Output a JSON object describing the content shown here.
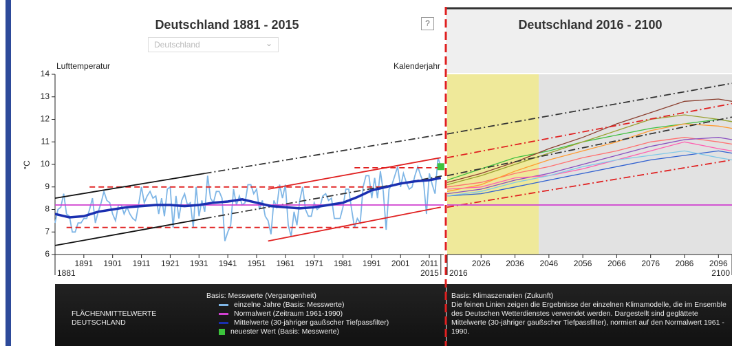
{
  "chart_data": [
    {
      "type": "line",
      "title": "Deutschland 1881 - 2015",
      "dropdown": "Deutschland",
      "help": "?",
      "y_label": "Lufttemperatur",
      "x_label": "Kalenderjahr",
      "y_unit": "°C",
      "legend_title": "Basis: Messwerte (Vergangenheit)",
      "note_heading": "FLÄCHENMITTELWERTE DEUTSCHLAND",
      "xlim": [
        1881,
        2016
      ],
      "ylim": [
        6,
        14
      ],
      "yticks": [
        6,
        7,
        8,
        9,
        10,
        11,
        12,
        13,
        14
      ],
      "xticks": [
        1891,
        1901,
        1911,
        1921,
        1931,
        1941,
        1951,
        1961,
        1971,
        1981,
        1991,
        2001,
        2011
      ],
      "range_labels": [
        1881,
        2015
      ],
      "series": [
        {
          "name": "einzelne Jahre (Basis: Messwerte)",
          "color": "#7fb6e6",
          "style": "solid",
          "x": [
            1881,
            1882,
            1883,
            1884,
            1885,
            1886,
            1887,
            1888,
            1889,
            1890,
            1891,
            1892,
            1893,
            1894,
            1895,
            1896,
            1897,
            1898,
            1899,
            1900,
            1901,
            1902,
            1903,
            1904,
            1905,
            1906,
            1907,
            1908,
            1909,
            1910,
            1911,
            1912,
            1913,
            1914,
            1915,
            1916,
            1917,
            1918,
            1919,
            1920,
            1921,
            1922,
            1923,
            1924,
            1925,
            1926,
            1927,
            1928,
            1929,
            1930,
            1931,
            1932,
            1933,
            1934,
            1935,
            1936,
            1937,
            1938,
            1939,
            1940,
            1941,
            1942,
            1943,
            1944,
            1945,
            1946,
            1947,
            1948,
            1949,
            1950,
            1951,
            1952,
            1953,
            1954,
            1955,
            1956,
            1957,
            1958,
            1959,
            1960,
            1961,
            1962,
            1963,
            1964,
            1965,
            1966,
            1967,
            1968,
            1969,
            1970,
            1971,
            1972,
            1973,
            1974,
            1975,
            1976,
            1977,
            1978,
            1979,
            1980,
            1981,
            1982,
            1983,
            1984,
            1985,
            1986,
            1987,
            1988,
            1989,
            1990,
            1991,
            1992,
            1993,
            1994,
            1995,
            1996,
            1997,
            1998,
            1999,
            2000,
            2001,
            2002,
            2003,
            2004,
            2005,
            2006,
            2007,
            2008,
            2009,
            2010,
            2011,
            2012,
            2013,
            2014,
            2015
          ],
          "values": [
            7.4,
            8.0,
            8.1,
            8.7,
            7.8,
            7.7,
            7.0,
            7.0,
            7.4,
            7.4,
            7.6,
            7.6,
            8.0,
            8.5,
            7.4,
            7.9,
            8.3,
            8.8,
            8.4,
            8.3,
            7.8,
            7.5,
            8.2,
            8.2,
            7.8,
            8.1,
            7.8,
            7.6,
            7.5,
            8.2,
            9.0,
            8.3,
            8.6,
            8.8,
            8.5,
            8.6,
            7.8,
            8.5,
            7.7,
            8.9,
            9.0,
            7.2,
            8.6,
            7.6,
            8.4,
            8.7,
            8.2,
            8.3,
            7.2,
            9.0,
            7.7,
            8.4,
            7.9,
            9.5,
            8.5,
            8.3,
            8.8,
            8.8,
            8.5,
            6.6,
            7.0,
            7.3,
            8.9,
            8.2,
            8.6,
            8.2,
            8.3,
            9.1,
            9.1,
            8.7,
            8.9,
            8.0,
            8.4,
            7.7,
            7.5,
            6.9,
            8.4,
            8.1,
            9.1,
            8.5,
            9.1,
            7.3,
            6.8,
            7.9,
            7.3,
            8.4,
            9.0,
            8.0,
            7.7,
            7.7,
            8.3,
            8.0,
            8.1,
            8.6,
            8.7,
            8.4,
            8.5,
            7.6,
            7.6,
            7.6,
            8.1,
            8.9,
            8.9,
            8.0,
            7.2,
            7.6,
            7.4,
            9.0,
            9.5,
            9.5,
            8.5,
            9.4,
            8.5,
            9.7,
            8.8,
            7.1,
            8.9,
            9.1,
            9.5,
            9.9,
            9.0,
            9.6,
            9.2,
            8.9,
            9.0,
            9.5,
            9.9,
            9.5,
            9.2,
            7.8,
            9.6,
            9.1,
            8.7,
            10.3,
            9.9
          ]
        },
        {
          "color": "#e02020",
          "style": "dashed",
          "x": [
            1893,
            1995
          ],
          "values": [
            9.0,
            9.0
          ]
        },
        {
          "color": "#e02020",
          "style": "dashed",
          "x": [
            1885,
            1995
          ],
          "values": [
            7.2,
            7.2
          ]
        },
        {
          "color": "#e02020",
          "style": "dashed",
          "x": [
            1985,
            2015
          ],
          "values": [
            9.85,
            9.85
          ]
        },
        {
          "color": "#e02020",
          "style": "solid",
          "x": [
            1955,
            2015
          ],
          "values": [
            8.9,
            10.3
          ]
        },
        {
          "color": "#e02020",
          "style": "solid",
          "x": [
            1955,
            2015
          ],
          "values": [
            6.6,
            8.1
          ]
        },
        {
          "color": "#111111",
          "style": "solid",
          "x": [
            1881,
            1933
          ],
          "values": [
            8.5,
            9.6
          ]
        },
        {
          "color": "#111111",
          "style": "solid",
          "x": [
            1881,
            1933
          ],
          "values": [
            6.4,
            7.6
          ]
        },
        {
          "color": "#333333",
          "style": "dashdot",
          "x": [
            1933,
            2016
          ],
          "values": [
            9.6,
            11.35
          ]
        },
        {
          "color": "#333333",
          "style": "dashdot",
          "x": [
            1933,
            2016
          ],
          "values": [
            7.6,
            9.5
          ]
        },
        {
          "name": "Normalwert (Zeitraum 1961-1990)",
          "color": "#d040d0",
          "style": "solid",
          "x": [
            1881,
            2016
          ],
          "values": [
            8.2,
            8.2
          ]
        },
        {
          "name": "Mittelwerte (30-jähriger gaußscher Tiefpassfilter)",
          "color": "#1a2fb0",
          "style": "thick",
          "x": [
            1881,
            1886,
            1891,
            1896,
            1901,
            1906,
            1911,
            1916,
            1921,
            1926,
            1931,
            1936,
            1941,
            1946,
            1951,
            1956,
            1961,
            1966,
            1971,
            1976,
            1981,
            1986,
            1991,
            1996,
            2001,
            2006,
            2011,
            2015
          ],
          "values": [
            7.8,
            7.65,
            7.7,
            7.9,
            8.0,
            8.1,
            8.15,
            8.2,
            8.2,
            8.15,
            8.2,
            8.3,
            8.35,
            8.45,
            8.3,
            8.15,
            8.1,
            8.05,
            8.1,
            8.2,
            8.3,
            8.55,
            8.85,
            9.0,
            9.15,
            9.25,
            9.3,
            9.4
          ]
        },
        {
          "name": "neuester Wert (Basis: Messwerte)",
          "color": "#3cc43c",
          "style": "square",
          "x": [
            2015
          ],
          "values": [
            9.9
          ]
        }
      ]
    },
    {
      "type": "line",
      "title": "Deutschland 2016 - 2100",
      "legend_title": "Basis: Klimaszenarien (Zukunft)",
      "note": "Die feinen Linien zeigen die Ergebnisse der einzelnen Klimamodelle, die im Ensemble des Deutschen Wetterdienstes verwendet werden. Dargestellt sind geglättete Mittelwerte (30-jähriger gaußscher Tiefpassfilter), normiert auf den Normalwert 1961 - 1990.",
      "xlim": [
        2016,
        2100
      ],
      "ylim": [
        6,
        14
      ],
      "xticks": [
        2026,
        2036,
        2046,
        2056,
        2066,
        2076,
        2086,
        2096
      ],
      "range_labels": [
        2016,
        2100
      ],
      "periods": [
        {
          "start": 2016,
          "end": 2043,
          "color": "#efe99a"
        },
        {
          "start": 2043,
          "end": 2100,
          "color": "#e2e2e2"
        }
      ],
      "series": [
        {
          "color": "#ff7070",
          "style": "thin",
          "x": [
            2016,
            2026,
            2036,
            2046,
            2056,
            2066,
            2076,
            2086,
            2096,
            2100
          ],
          "values": [
            9.0,
            9.2,
            9.6,
            9.9,
            10.3,
            10.6,
            11.0,
            11.2,
            11.0,
            10.9
          ]
        },
        {
          "color": "#40c040",
          "style": "thin",
          "x": [
            2016,
            2026,
            2036,
            2046,
            2056,
            2066,
            2076,
            2086,
            2096,
            2100
          ],
          "values": [
            9.3,
            9.8,
            10.3,
            10.6,
            11.0,
            11.3,
            11.6,
            11.8,
            12.0,
            11.9
          ]
        },
        {
          "color": "#ff9a30",
          "style": "thin",
          "x": [
            2016,
            2026,
            2036,
            2046,
            2056,
            2066,
            2076,
            2086,
            2096,
            2100
          ],
          "values": [
            8.8,
            9.1,
            9.7,
            10.2,
            10.6,
            11.0,
            11.5,
            11.8,
            11.7,
            11.6
          ]
        },
        {
          "color": "#8a4fc0",
          "style": "thin",
          "x": [
            2016,
            2026,
            2036,
            2046,
            2056,
            2066,
            2076,
            2086,
            2096,
            2100
          ],
          "values": [
            8.7,
            8.9,
            9.3,
            9.6,
            10.0,
            10.4,
            10.8,
            11.1,
            11.2,
            11.1
          ]
        },
        {
          "color": "#3060d0",
          "style": "thin",
          "x": [
            2016,
            2026,
            2036,
            2046,
            2056,
            2066,
            2076,
            2086,
            2096,
            2100
          ],
          "values": [
            8.6,
            8.7,
            9.0,
            9.3,
            9.6,
            9.9,
            10.2,
            10.4,
            10.6,
            10.5
          ]
        },
        {
          "color": "#ff60b0",
          "style": "thin",
          "x": [
            2016,
            2026,
            2036,
            2046,
            2056,
            2066,
            2076,
            2086,
            2096,
            2100
          ],
          "values": [
            8.9,
            9.0,
            9.4,
            9.5,
            9.8,
            10.2,
            10.6,
            11.0,
            10.7,
            10.6
          ]
        },
        {
          "color": "#9aa030",
          "style": "thin",
          "x": [
            2016,
            2026,
            2036,
            2046,
            2056,
            2066,
            2076,
            2086,
            2096,
            2100
          ],
          "values": [
            9.1,
            9.5,
            10.0,
            10.5,
            11.0,
            11.5,
            12.0,
            12.2,
            12.0,
            11.9
          ]
        },
        {
          "color": "#8b4030",
          "style": "thin",
          "x": [
            2016,
            2026,
            2036,
            2046,
            2056,
            2066,
            2076,
            2086,
            2096,
            2100
          ],
          "values": [
            9.2,
            9.6,
            10.1,
            10.7,
            11.2,
            11.8,
            12.3,
            12.8,
            12.9,
            12.8
          ]
        },
        {
          "color": "#80c8e8",
          "style": "thin",
          "x": [
            2016,
            2026,
            2036,
            2046,
            2056,
            2066,
            2076,
            2086,
            2096,
            2100
          ],
          "values": [
            8.6,
            8.8,
            9.2,
            9.5,
            9.9,
            10.2,
            10.4,
            10.6,
            10.3,
            10.2
          ]
        },
        {
          "color": "#333333",
          "style": "dashdot",
          "x": [
            2016,
            2100
          ],
          "values": [
            11.35,
            13.6
          ]
        },
        {
          "color": "#333333",
          "style": "dashdot",
          "x": [
            2016,
            2100
          ],
          "values": [
            9.5,
            12.1
          ]
        },
        {
          "color": "#e02020",
          "style": "dashdot",
          "x": [
            2016,
            2100
          ],
          "values": [
            10.3,
            12.7
          ]
        },
        {
          "color": "#e02020",
          "style": "dashdot",
          "x": [
            2016,
            2100
          ],
          "values": [
            8.1,
            10.2
          ]
        },
        {
          "color": "#d040d0",
          "style": "solid",
          "x": [
            2016,
            2100
          ],
          "values": [
            8.2,
            8.2
          ]
        }
      ]
    }
  ]
}
